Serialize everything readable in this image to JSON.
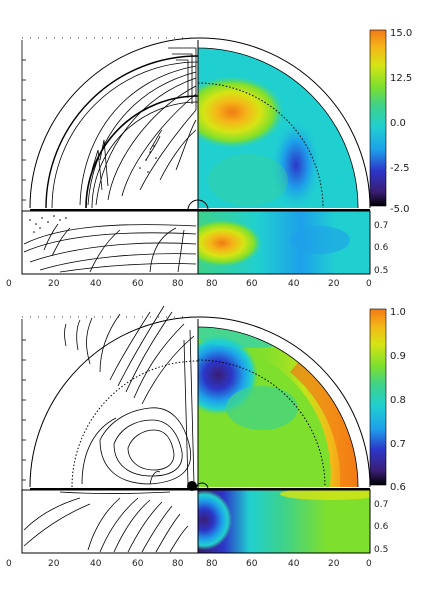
{
  "panels": [
    {
      "id": "top",
      "left_x_ticks": [
        "0",
        "20",
        "40",
        "60",
        "80"
      ],
      "right_x_ticks": [
        "80",
        "60",
        "40",
        "20",
        "0"
      ],
      "colorbar_ticks": [
        "15.0",
        "12.5",
        "0.0",
        "-2.5",
        "-5.0"
      ],
      "strip_y_ticks": [
        "0.7",
        "0.6",
        "0.5"
      ],
      "colors": [
        "#000000",
        "#3a1e74",
        "#2c36c8",
        "#1ea0ea",
        "#20d0d0",
        "#3ed28a",
        "#7fdf2d",
        "#d6e414",
        "#f4b818",
        "#f27a16"
      ]
    },
    {
      "id": "bottom",
      "left_x_ticks": [
        "0",
        "20",
        "40",
        "60",
        "80"
      ],
      "right_x_ticks": [
        "80",
        "60",
        "40",
        "20",
        "0"
      ],
      "colorbar_ticks": [
        "1.0",
        "0.9",
        "0.8",
        "0.7",
        "0.6"
      ],
      "strip_y_ticks": [
        "0.7",
        "0.6",
        "0.5"
      ],
      "colors": [
        "#000000",
        "#3a1e74",
        "#2c36c8",
        "#1ea0ea",
        "#20d0d0",
        "#3ed28a",
        "#7fdf2d",
        "#d6e414",
        "#f4b818",
        "#f27a16"
      ]
    }
  ]
}
